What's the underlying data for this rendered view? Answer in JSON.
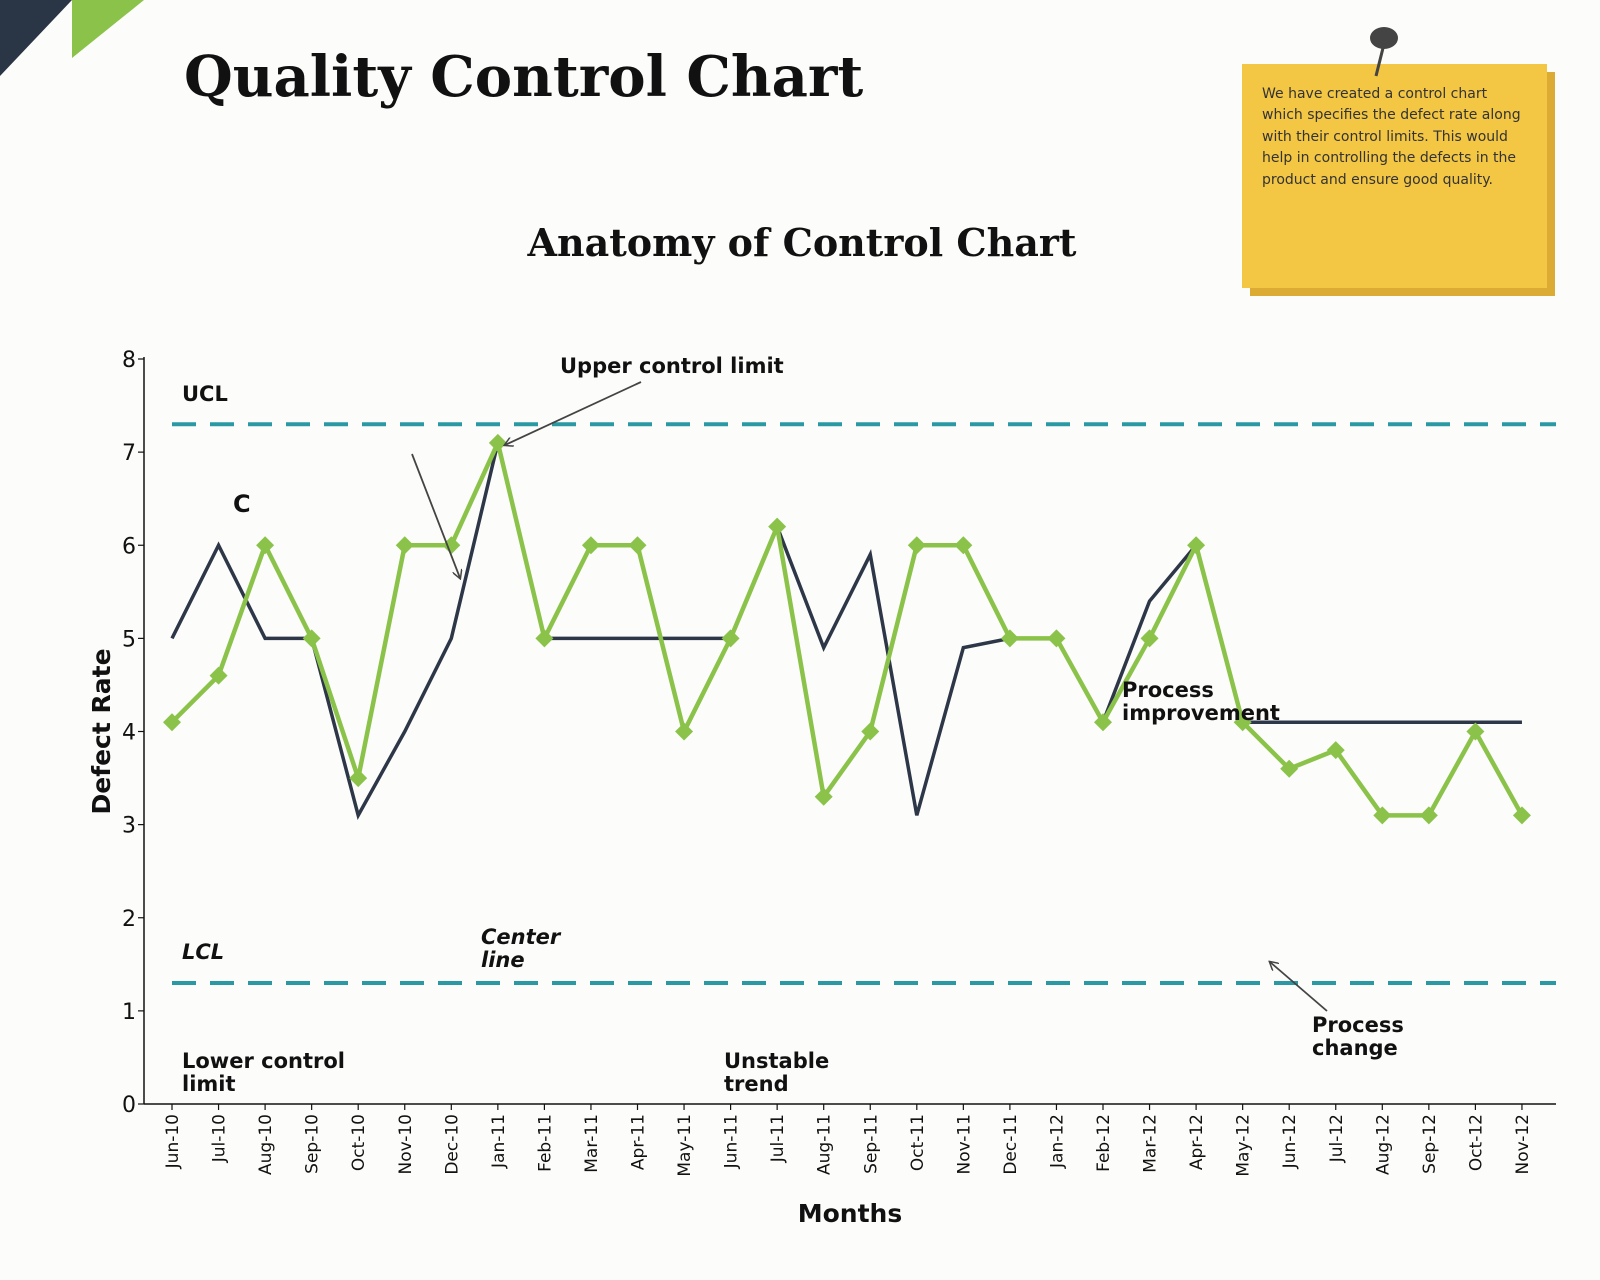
{
  "page": {
    "title": "Quality Control Chart",
    "note": "We have created a control chart which specifies the defect rate along with their control limits. This would help in controlling the defects in the product and ensure good quality."
  },
  "colors": {
    "series_dark": "#2d3748",
    "series_green": "#8bc34a",
    "control_limit": "#2b99a3",
    "note_bg": "#f3c644",
    "corner_dark": "#2a3545",
    "corner_green": "#8bc34a"
  },
  "chart_data": {
    "type": "line",
    "title": "Anatomy of Control Chart",
    "xlabel": "Months",
    "ylabel": "Defect Rate",
    "ylim": [
      0,
      8
    ],
    "yticks": [
      0,
      1,
      2,
      3,
      4,
      5,
      6,
      7,
      8
    ],
    "grid": false,
    "categories": [
      "Jun-10",
      "Jul-10",
      "Aug-10",
      "Sep-10",
      "Oct-10",
      "Nov-10",
      "Dec-10",
      "Jan-11",
      "Feb-11",
      "Mar-11",
      "Apr-11",
      "May-11",
      "Jun-11",
      "Jul-11",
      "Aug-11",
      "Sep-11",
      "Oct-11",
      "Nov-11",
      "Dec-11",
      "Jan-12",
      "Feb-12",
      "Mar-12",
      "Apr-12",
      "May-12",
      "Jun-12",
      "Jul-12",
      "Aug-12",
      "Sep-12",
      "Oct-12",
      "Nov-12"
    ],
    "series": [
      {
        "values": [
          5,
          6,
          5,
          5,
          3.1,
          4,
          5,
          7.1,
          5,
          5,
          5,
          5,
          5,
          6.2,
          4.9,
          5.9,
          3.1,
          4.9,
          5,
          5,
          4.1,
          5.4,
          6,
          4.1,
          4.1,
          4.1,
          4.1,
          4.1,
          4.1,
          4.1
        ]
      },
      {
        "values": [
          4.1,
          4.6,
          6,
          5,
          3.5,
          6,
          6,
          7.1,
          5,
          6,
          6,
          4,
          5,
          6.2,
          3.3,
          4,
          6,
          6,
          5,
          5,
          4.1,
          5,
          6,
          4.1,
          3.6,
          3.8,
          3.1,
          3.1,
          4,
          3.1
        ]
      }
    ],
    "control_limits": {
      "ucl": 7.3,
      "lcl": 1.3
    },
    "annotations": {
      "ucl": "UCL",
      "lcl": "LCL",
      "c": "C",
      "upper_control_limit": "Upper control limit",
      "center_line": [
        "Center",
        "line"
      ],
      "lower_control_limit": [
        "Lower control",
        "limit"
      ],
      "unstable_trend": [
        "Unstable",
        "trend"
      ],
      "process_improvement": [
        "Process",
        "improvement"
      ],
      "process_change": [
        "Process",
        "change"
      ]
    }
  }
}
